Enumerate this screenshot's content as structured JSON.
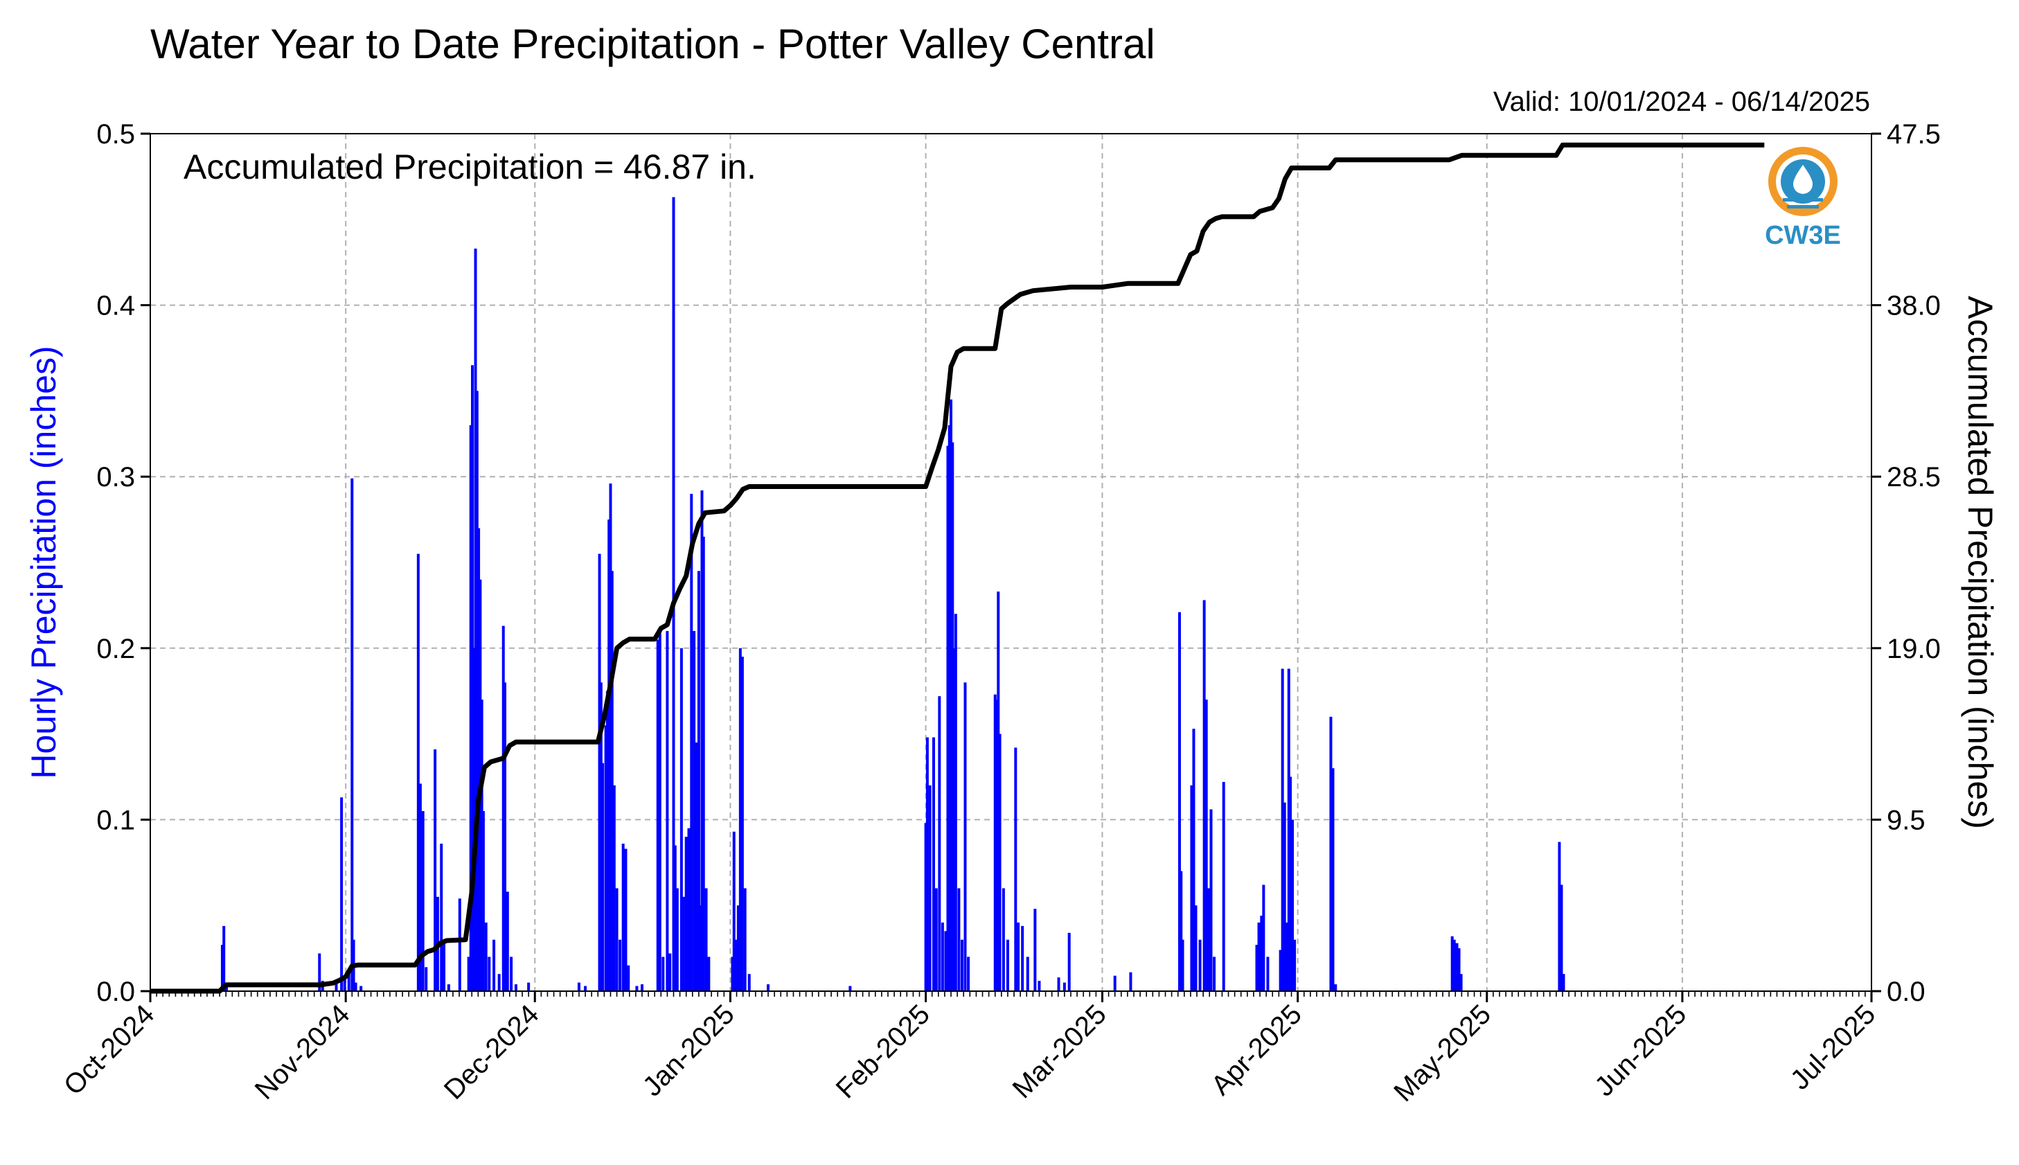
{
  "chart_data": {
    "type": "bar",
    "title": "Water Year to Date Precipitation - Potter Valley Central",
    "valid": "Valid: 10/01/2024 - 06/14/2025",
    "annotation": "Accumulated Precipitation = 46.87 in.",
    "logo_text": "CW3E",
    "ylabel": "Hourly Precipitation (inches)",
    "y2label": "Accumulated Precipitation (inches)",
    "ylim": [
      0,
      0.5
    ],
    "y2lim": [
      0,
      47.5
    ],
    "yticks": [
      "0.0",
      "0.1",
      "0.2",
      "0.3",
      "0.4",
      "0.5"
    ],
    "y2ticks": [
      "0.0",
      "9.5",
      "19.0",
      "28.5",
      "38.0",
      "47.5"
    ],
    "xlim": [
      "2024-10-01",
      "2025-07-01"
    ],
    "xticks": [
      "Oct-2024",
      "Nov-2024",
      "Dec-2024",
      "Jan-2025",
      "Feb-2025",
      "Mar-2025",
      "Apr-2025",
      "May-2025",
      "Jun-2025",
      "Jul-2025"
    ],
    "grid": true,
    "series": [
      {
        "type": "bar",
        "color": "#0000ff",
        "points": [
          [
            "2024-10-12 10:00",
            0.027
          ],
          [
            "2024-10-12 16:00",
            0.038
          ],
          [
            "2024-10-13 02:00",
            0.005
          ],
          [
            "2024-10-27 20:00",
            0.022
          ],
          [
            "2024-10-28 08:00",
            0.006
          ],
          [
            "2024-10-30 12:00",
            0.005
          ],
          [
            "2024-10-31 08:00",
            0.113
          ],
          [
            "2024-10-31 20:00",
            0.008
          ],
          [
            "2024-11-01 12:00",
            0.012
          ],
          [
            "2024-11-02 00:00",
            0.299
          ],
          [
            "2024-11-02 06:00",
            0.03
          ],
          [
            "2024-11-02 14:00",
            0.005
          ],
          [
            "2024-11-03 10:00",
            0.003
          ],
          [
            "2024-11-12 12:00",
            0.255
          ],
          [
            "2024-11-12 20:00",
            0.121
          ],
          [
            "2024-11-13 06:00",
            0.105
          ],
          [
            "2024-11-13 18:00",
            0.014
          ],
          [
            "2024-11-15 04:00",
            0.141
          ],
          [
            "2024-11-15 14:00",
            0.055
          ],
          [
            "2024-11-16 04:00",
            0.086
          ],
          [
            "2024-11-16 14:00",
            0.03
          ],
          [
            "2024-11-17 08:00",
            0.004
          ],
          [
            "2024-11-19 02:00",
            0.054
          ],
          [
            "2024-11-20 12:00",
            0.02
          ],
          [
            "2024-11-20 20:00",
            0.33
          ],
          [
            "2024-11-21 02:00",
            0.365
          ],
          [
            "2024-11-21 08:00",
            0.2
          ],
          [
            "2024-11-21 14:00",
            0.433
          ],
          [
            "2024-11-21 20:00",
            0.35
          ],
          [
            "2024-11-22 02:00",
            0.27
          ],
          [
            "2024-11-22 08:00",
            0.24
          ],
          [
            "2024-11-22 14:00",
            0.17
          ],
          [
            "2024-11-22 20:00",
            0.105
          ],
          [
            "2024-11-23 06:00",
            0.04
          ],
          [
            "2024-11-23 18:00",
            0.02
          ],
          [
            "2024-11-24 12:00",
            0.03
          ],
          [
            "2024-11-25 08:00",
            0.01
          ],
          [
            "2024-11-26 00:00",
            0.213
          ],
          [
            "2024-11-26 06:00",
            0.18
          ],
          [
            "2024-11-26 16:00",
            0.058
          ],
          [
            "2024-11-27 06:00",
            0.02
          ],
          [
            "2024-11-28 00:00",
            0.004
          ],
          [
            "2024-11-30 00:00",
            0.005
          ],
          [
            "2024-12-08 00:00",
            0.005
          ],
          [
            "2024-12-09 00:00",
            0.003
          ],
          [
            "2024-12-11 06:00",
            0.255
          ],
          [
            "2024-12-11 12:00",
            0.18
          ],
          [
            "2024-12-11 18:00",
            0.133
          ],
          [
            "2024-12-12 06:00",
            0.155
          ],
          [
            "2024-12-12 12:00",
            0.175
          ],
          [
            "2024-12-12 18:00",
            0.275
          ],
          [
            "2024-12-13 00:00",
            0.296
          ],
          [
            "2024-12-13 06:00",
            0.245
          ],
          [
            "2024-12-13 14:00",
            0.12
          ],
          [
            "2024-12-14 00:00",
            0.06
          ],
          [
            "2024-12-14 12:00",
            0.03
          ],
          [
            "2024-12-15 00:00",
            0.086
          ],
          [
            "2024-12-15 10:00",
            0.083
          ],
          [
            "2024-12-15 20:00",
            0.015
          ],
          [
            "2024-12-17 04:00",
            0.003
          ],
          [
            "2024-12-18 00:00",
            0.004
          ],
          [
            "2024-12-20 12:00",
            0.205
          ],
          [
            "2024-12-20 20:00",
            0.21
          ],
          [
            "2024-12-21 08:00",
            0.02
          ],
          [
            "2024-12-22 00:00",
            0.21
          ],
          [
            "2024-12-22 10:00",
            0.022
          ],
          [
            "2024-12-23 00:00",
            0.463
          ],
          [
            "2024-12-23 06:00",
            0.085
          ],
          [
            "2024-12-23 14:00",
            0.06
          ],
          [
            "2024-12-24 06:00",
            0.2
          ],
          [
            "2024-12-24 14:00",
            0.055
          ],
          [
            "2024-12-25 00:00",
            0.09
          ],
          [
            "2024-12-25 10:00",
            0.095
          ],
          [
            "2024-12-25 20:00",
            0.29
          ],
          [
            "2024-12-26 06:00",
            0.21
          ],
          [
            "2024-12-26 14:00",
            0.145
          ],
          [
            "2024-12-27 00:00",
            0.245
          ],
          [
            "2024-12-27 06:00",
            0.05
          ],
          [
            "2024-12-27 12:00",
            0.292
          ],
          [
            "2024-12-27 18:00",
            0.265
          ],
          [
            "2024-12-28 04:00",
            0.06
          ],
          [
            "2024-12-28 14:00",
            0.02
          ],
          [
            "2025-01-01 08:00",
            0.02
          ],
          [
            "2025-01-01 14:00",
            0.093
          ],
          [
            "2025-01-01 20:00",
            0.03
          ],
          [
            "2025-01-02 06:00",
            0.05
          ],
          [
            "2025-01-02 14:00",
            0.2
          ],
          [
            "2025-01-02 22:00",
            0.195
          ],
          [
            "2025-01-03 08:00",
            0.06
          ],
          [
            "2025-01-04 00:00",
            0.01
          ],
          [
            "2025-01-07 00:00",
            0.004
          ],
          [
            "2025-01-20 00:00",
            0.003
          ],
          [
            "2025-02-01 00:00",
            0.098
          ],
          [
            "2025-02-01 06:00",
            0.148
          ],
          [
            "2025-02-01 16:00",
            0.12
          ],
          [
            "2025-02-02 06:00",
            0.148
          ],
          [
            "2025-02-02 16:00",
            0.06
          ],
          [
            "2025-02-03 04:00",
            0.172
          ],
          [
            "2025-02-03 16:00",
            0.04
          ],
          [
            "2025-02-04 04:00",
            0.035
          ],
          [
            "2025-02-04 12:00",
            0.318
          ],
          [
            "2025-02-04 18:00",
            0.33
          ],
          [
            "2025-02-05 00:00",
            0.345
          ],
          [
            "2025-02-05 06:00",
            0.32
          ],
          [
            "2025-02-05 12:00",
            0.2
          ],
          [
            "2025-02-05 18:00",
            0.22
          ],
          [
            "2025-02-06 06:00",
            0.06
          ],
          [
            "2025-02-06 18:00",
            0.03
          ],
          [
            "2025-02-07 06:00",
            0.18
          ],
          [
            "2025-02-07 18:00",
            0.02
          ],
          [
            "2025-02-12 00:00",
            0.173
          ],
          [
            "2025-02-12 06:00",
            0.17
          ],
          [
            "2025-02-12 12:00",
            0.233
          ],
          [
            "2025-02-12 18:00",
            0.15
          ],
          [
            "2025-02-13 08:00",
            0.06
          ],
          [
            "2025-02-14 00:00",
            0.03
          ],
          [
            "2025-02-15 06:00",
            0.142
          ],
          [
            "2025-02-15 16:00",
            0.04
          ],
          [
            "2025-02-16 08:00",
            0.038
          ],
          [
            "2025-02-17 04:00",
            0.02
          ],
          [
            "2025-02-18 08:00",
            0.048
          ],
          [
            "2025-02-19 00:00",
            0.006
          ],
          [
            "2025-02-22 02:00",
            0.008
          ],
          [
            "2025-02-23 00:00",
            0.005
          ],
          [
            "2025-02-23 18:00",
            0.034
          ],
          [
            "2025-03-03 00:00",
            0.009
          ],
          [
            "2025-03-05 12:00",
            0.011
          ],
          [
            "2025-03-13 06:00",
            0.221
          ],
          [
            "2025-03-13 12:00",
            0.07
          ],
          [
            "2025-03-13 18:00",
            0.03
          ],
          [
            "2025-03-15 04:00",
            0.12
          ],
          [
            "2025-03-15 12:00",
            0.153
          ],
          [
            "2025-03-15 20:00",
            0.05
          ],
          [
            "2025-03-16 12:00",
            0.03
          ],
          [
            "2025-03-17 04:00",
            0.228
          ],
          [
            "2025-03-17 12:00",
            0.17
          ],
          [
            "2025-03-17 20:00",
            0.06
          ],
          [
            "2025-03-18 06:00",
            0.106
          ],
          [
            "2025-03-18 18:00",
            0.02
          ],
          [
            "2025-03-20 06:00",
            0.122
          ],
          [
            "2025-03-25 12:00",
            0.027
          ],
          [
            "2025-03-25 20:00",
            0.04
          ],
          [
            "2025-03-26 06:00",
            0.044
          ],
          [
            "2025-03-26 14:00",
            0.062
          ],
          [
            "2025-03-27 06:00",
            0.02
          ],
          [
            "2025-03-29 06:00",
            0.024
          ],
          [
            "2025-03-29 14:00",
            0.188
          ],
          [
            "2025-03-29 22:00",
            0.11
          ],
          [
            "2025-03-30 06:00",
            0.04
          ],
          [
            "2025-03-30 14:00",
            0.188
          ],
          [
            "2025-03-30 20:00",
            0.125
          ],
          [
            "2025-03-31 04:00",
            0.1
          ],
          [
            "2025-03-31 12:00",
            0.03
          ],
          [
            "2025-04-06 06:00",
            0.16
          ],
          [
            "2025-04-06 14:00",
            0.13
          ],
          [
            "2025-04-07 00:00",
            0.004
          ],
          [
            "2025-04-25 12:00",
            0.032
          ],
          [
            "2025-04-25 20:00",
            0.03
          ],
          [
            "2025-04-26 06:00",
            0.028
          ],
          [
            "2025-04-26 14:00",
            0.025
          ],
          [
            "2025-04-26 22:00",
            0.01
          ],
          [
            "2025-05-12 12:00",
            0.087
          ],
          [
            "2025-05-12 20:00",
            0.062
          ],
          [
            "2025-05-13 04:00",
            0.01
          ]
        ]
      },
      {
        "type": "line",
        "color": "#000000",
        "points": [
          [
            "2024-10-01",
            0.0
          ],
          [
            "2024-10-12",
            0.0
          ],
          [
            "2024-10-13",
            0.35
          ],
          [
            "2024-10-28",
            0.35
          ],
          [
            "2024-10-30",
            0.45
          ],
          [
            "2024-10-31",
            0.6
          ],
          [
            "2024-11-01",
            0.8
          ],
          [
            "2024-11-02",
            1.4
          ],
          [
            "2024-11-03",
            1.45
          ],
          [
            "2024-11-12",
            1.45
          ],
          [
            "2024-11-13",
            1.95
          ],
          [
            "2024-11-14",
            2.2
          ],
          [
            "2024-11-15",
            2.3
          ],
          [
            "2024-11-16",
            2.65
          ],
          [
            "2024-11-17",
            2.8
          ],
          [
            "2024-11-20",
            2.85
          ],
          [
            "2024-11-21",
            5.5
          ],
          [
            "2024-11-22",
            10.5
          ],
          [
            "2024-11-23",
            12.4
          ],
          [
            "2024-11-24",
            12.7
          ],
          [
            "2024-11-26",
            12.9
          ],
          [
            "2024-11-27",
            13.6
          ],
          [
            "2024-11-28",
            13.8
          ],
          [
            "2024-12-11",
            13.8
          ],
          [
            "2024-12-12",
            15.2
          ],
          [
            "2024-12-13",
            17.0
          ],
          [
            "2024-12-14",
            19.0
          ],
          [
            "2024-12-15",
            19.3
          ],
          [
            "2024-12-16",
            19.5
          ],
          [
            "2024-12-20",
            19.5
          ],
          [
            "2024-12-21",
            20.1
          ],
          [
            "2024-12-22",
            20.3
          ],
          [
            "2024-12-23",
            21.5
          ],
          [
            "2024-12-24",
            22.3
          ],
          [
            "2024-12-25",
            23.0
          ],
          [
            "2024-12-26",
            24.8
          ],
          [
            "2024-12-27",
            25.9
          ],
          [
            "2024-12-28",
            26.5
          ],
          [
            "2024-12-31",
            26.6
          ],
          [
            "2025-01-01",
            26.9
          ],
          [
            "2025-01-02",
            27.3
          ],
          [
            "2025-01-03",
            27.8
          ],
          [
            "2025-01-04",
            27.95
          ],
          [
            "2025-02-01",
            27.95
          ],
          [
            "2025-02-02",
            29.0
          ],
          [
            "2025-02-03",
            30.0
          ],
          [
            "2025-02-04",
            31.2
          ],
          [
            "2025-02-05",
            34.6
          ],
          [
            "2025-02-06",
            35.4
          ],
          [
            "2025-02-07",
            35.6
          ],
          [
            "2025-02-12",
            35.6
          ],
          [
            "2025-02-13",
            37.8
          ],
          [
            "2025-02-14",
            38.1
          ],
          [
            "2025-02-16",
            38.6
          ],
          [
            "2025-02-18",
            38.8
          ],
          [
            "2025-02-24",
            39.0
          ],
          [
            "2025-03-01",
            39.0
          ],
          [
            "2025-03-05",
            39.2
          ],
          [
            "2025-03-13",
            39.2
          ],
          [
            "2025-03-14",
            40.0
          ],
          [
            "2025-03-15",
            40.8
          ],
          [
            "2025-03-16",
            41.0
          ],
          [
            "2025-03-17",
            42.1
          ],
          [
            "2025-03-18",
            42.6
          ],
          [
            "2025-03-19",
            42.8
          ],
          [
            "2025-03-20",
            42.9
          ],
          [
            "2025-03-25",
            42.9
          ],
          [
            "2025-03-26",
            43.2
          ],
          [
            "2025-03-28",
            43.4
          ],
          [
            "2025-03-29",
            43.9
          ],
          [
            "2025-03-30",
            45.0
          ],
          [
            "2025-03-31",
            45.6
          ],
          [
            "2025-04-06",
            45.6
          ],
          [
            "2025-04-07",
            46.05
          ],
          [
            "2025-04-25",
            46.05
          ],
          [
            "2025-04-27",
            46.3
          ],
          [
            "2025-05-12",
            46.3
          ],
          [
            "2025-05-13",
            46.87
          ],
          [
            "2025-06-14",
            46.87
          ]
        ]
      }
    ]
  }
}
